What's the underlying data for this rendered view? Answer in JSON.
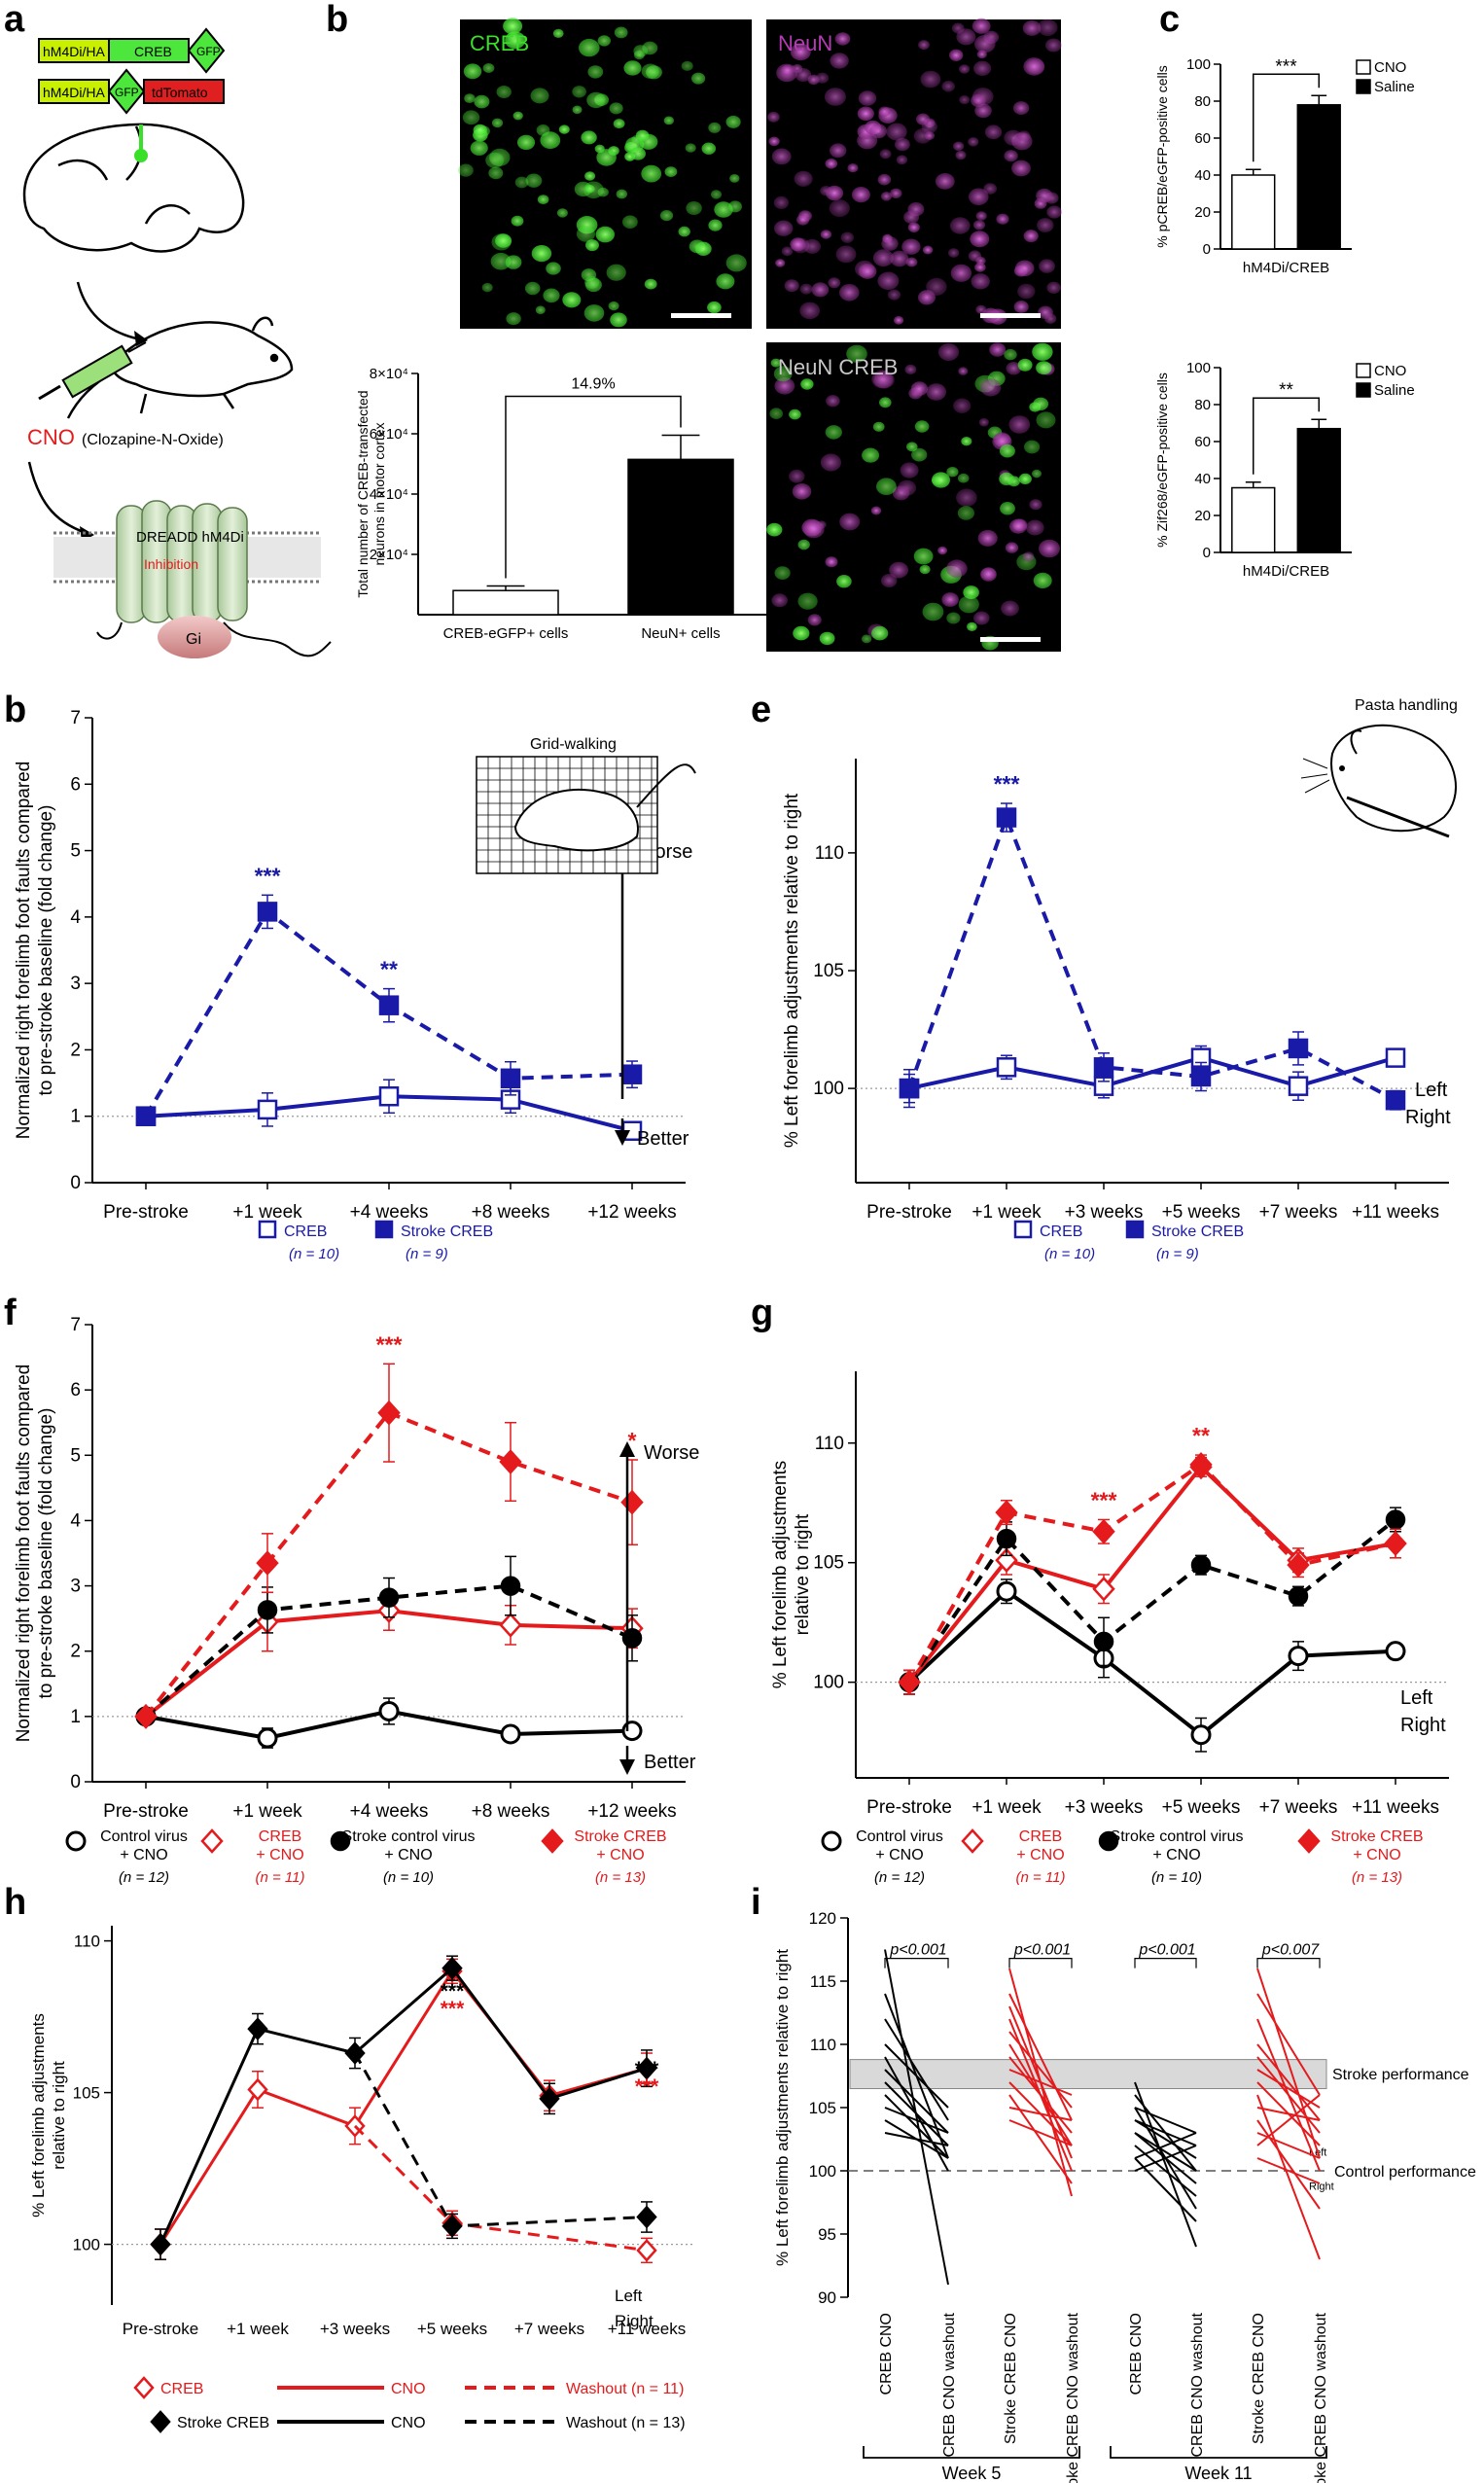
{
  "panel_letters": {
    "a": "a",
    "b_top": "b",
    "c": "c",
    "b": "b",
    "e": "e",
    "f": "f",
    "g": "g",
    "h": "h",
    "i": "i"
  },
  "colors": {
    "blue": "#1a1aa8",
    "red": "#e41a1c",
    "black": "#000000",
    "green": "#3adf2a",
    "magenta": "#b43bb4",
    "grey": "#d9d9d9"
  },
  "panel_a": {
    "constructs": [
      {
        "boxes": [
          "hM4Di/HA",
          "CREB",
          "GFP"
        ]
      },
      {
        "boxes": [
          "hM4Di/HA",
          "GFP",
          "tdTomato"
        ]
      }
    ],
    "cno_label": "CNO",
    "cno_full": "(Clozapine-N-Oxide)",
    "receptor_label": "DREADD hM4Di",
    "inhibition_label": "Inhibition",
    "gi_label": "Gi"
  },
  "panel_b_micro": {
    "images": [
      {
        "label": "CREB",
        "color": "#3adf2a"
      },
      {
        "label": "NeuN",
        "color": "#b43bb4"
      },
      {
        "label": "NeuN CREB",
        "color": "mixed"
      }
    ]
  },
  "chart_data": [
    {
      "id": "b_top_bar",
      "type": "bar",
      "categories": [
        "CREB-eGFP+ cells",
        "NeuN+ cells"
      ],
      "values": [
        8000,
        51500
      ],
      "errors": [
        1500,
        8000
      ],
      "ylabel": "Total number of CREB-transfected neurons in motor cortex",
      "yticks": [
        "2×10⁴",
        "4×10⁴",
        "6×10⁴",
        "8×10⁴"
      ],
      "ytick_values": [
        20000,
        40000,
        60000,
        80000
      ],
      "ylim": [
        0,
        80000
      ],
      "annotation": "14.9%"
    },
    {
      "id": "c_top_bar",
      "type": "bar",
      "categories": [
        "CNO",
        "Saline"
      ],
      "values": [
        40,
        78
      ],
      "errors": [
        3,
        5
      ],
      "ylabel": "% pCREB/eGFP-positive cells",
      "xlabel": "hM4Di/CREB",
      "yticks": [
        "0",
        "20",
        "40",
        "60",
        "80",
        "100"
      ],
      "ylim": [
        0,
        100
      ],
      "significance": "***",
      "legend": [
        "CNO",
        "Saline"
      ]
    },
    {
      "id": "c_bottom_bar",
      "type": "bar",
      "categories": [
        "CNO",
        "Saline"
      ],
      "values": [
        35,
        67
      ],
      "errors": [
        3,
        5
      ],
      "ylabel": "% Zif268/eGFP-positive cells",
      "xlabel": "hM4Di/CREB",
      "yticks": [
        "0",
        "20",
        "40",
        "60",
        "80",
        "100"
      ],
      "ylim": [
        0,
        100
      ],
      "significance": "**",
      "legend": [
        "CNO",
        "Saline"
      ]
    },
    {
      "id": "b_line",
      "type": "line",
      "categories": [
        "Pre-stroke",
        "+1 week",
        "+4 weeks",
        "+8 weeks",
        "+12 weeks"
      ],
      "ylabel": "Normalized right forelimb foot faults compared to pre-stroke baseline (fold change)",
      "yticks": [
        "0",
        "1",
        "2",
        "3",
        "4",
        "5",
        "6",
        "7"
      ],
      "ylim": [
        0,
        7
      ],
      "inset_title": "Grid-walking",
      "worse": "Worse",
      "better": "Better",
      "series": [
        {
          "name": "CREB",
          "n": "(n = 10)",
          "values": [
            1.0,
            1.1,
            1.3,
            1.25,
            0.78
          ],
          "errors": [
            0.05,
            0.25,
            0.25,
            0.2,
            0.1
          ],
          "color": "#1a1aa8",
          "dashed": false,
          "marker": "open-square"
        },
        {
          "name": "Stroke CREB",
          "n": "(n = 9)",
          "values": [
            1.0,
            4.08,
            2.67,
            1.57,
            1.63
          ],
          "errors": [
            0.05,
            0.25,
            0.25,
            0.25,
            0.2
          ],
          "color": "#1a1aa8",
          "dashed": true,
          "marker": "filled-square"
        }
      ],
      "stars": [
        {
          "cat": 1,
          "text": "***",
          "color": "#1a1aa8"
        },
        {
          "cat": 2,
          "text": "**",
          "color": "#1a1aa8"
        }
      ]
    },
    {
      "id": "e_line",
      "type": "line",
      "categories": [
        "Pre-stroke",
        "+1 week",
        "+3 weeks",
        "+5 weeks",
        "+7 weeks",
        "+11 weeks"
      ],
      "ylabel": "% Left forelimb adjustments relative to right",
      "yticks": [
        "100",
        "105",
        "110"
      ],
      "ylim": [
        96,
        114
      ],
      "inset_title": "Pasta handling",
      "left": "Left",
      "right": "Right",
      "series": [
        {
          "name": "CREB",
          "n": "(n = 10)",
          "values": [
            100,
            100.9,
            100.1,
            101.3,
            100.1,
            101.3
          ],
          "errors": [
            0.6,
            0.5,
            0.5,
            0.5,
            0.6,
            0.2
          ],
          "color": "#1a1aa8",
          "dashed": false,
          "marker": "open-square"
        },
        {
          "name": "Stroke CREB",
          "n": "(n = 9)",
          "values": [
            100,
            111.5,
            100.9,
            100.5,
            101.7,
            99.5
          ],
          "errors": [
            0.8,
            0.6,
            0.6,
            0.6,
            0.7,
            0.4
          ],
          "color": "#1a1aa8",
          "dashed": true,
          "marker": "filled-square"
        }
      ],
      "stars": [
        {
          "cat": 1,
          "text": "***",
          "color": "#1a1aa8"
        }
      ]
    },
    {
      "id": "f_line",
      "type": "line",
      "categories": [
        "Pre-stroke",
        "+1 week",
        "+4 weeks",
        "+8 weeks",
        "+12 weeks"
      ],
      "ylabel": "Normalized right forelimb foot faults compared to pre-stroke baseline (fold change)",
      "yticks": [
        "0",
        "1",
        "2",
        "3",
        "4",
        "5",
        "6",
        "7"
      ],
      "ylim": [
        0,
        7
      ],
      "worse": "Worse",
      "better": "Better",
      "series": [
        {
          "name": "Control virus + CNO",
          "n": "(n = 12)",
          "values": [
            1.0,
            0.67,
            1.08,
            0.73,
            0.78
          ],
          "errors": [
            0.05,
            0.15,
            0.2,
            0.1,
            0.08
          ],
          "color": "#000000",
          "dashed": false,
          "marker": "open-circle"
        },
        {
          "name": "CREB + CNO",
          "n": "(n = 11)",
          "values": [
            1.0,
            2.45,
            2.62,
            2.4,
            2.35
          ],
          "errors": [
            0.05,
            0.45,
            0.3,
            0.3,
            0.3
          ],
          "color": "#e41a1c",
          "dashed": false,
          "marker": "open-diamond"
        },
        {
          "name": "Stroke control virus + CNO",
          "n": "(n = 10)",
          "values": [
            1.0,
            2.63,
            2.82,
            3.0,
            2.2
          ],
          "errors": [
            0.05,
            0.35,
            0.3,
            0.45,
            0.35
          ],
          "color": "#000000",
          "dashed": true,
          "marker": "filled-circle"
        },
        {
          "name": "Stroke CREB + CNO",
          "n": "(n = 13)",
          "values": [
            1.0,
            3.35,
            5.65,
            4.9,
            4.28
          ],
          "errors": [
            0.05,
            0.45,
            0.75,
            0.6,
            0.65
          ],
          "color": "#e41a1c",
          "dashed": true,
          "marker": "filled-diamond"
        }
      ],
      "stars": [
        {
          "cat": 2,
          "text": "***",
          "color": "#e41a1c"
        },
        {
          "cat": 4,
          "text": "*",
          "color": "#e41a1c"
        }
      ]
    },
    {
      "id": "g_line",
      "type": "line",
      "categories": [
        "Pre-stroke",
        "+1 week",
        "+3 weeks",
        "+5 weeks",
        "+7 weeks",
        "+11 weeks"
      ],
      "ylabel": "% Left forelimb adjustments relative to right",
      "yticks": [
        "100",
        "105",
        "110"
      ],
      "ylim": [
        96,
        113
      ],
      "left": "Left",
      "right": "Right",
      "series": [
        {
          "name": "Control virus + CNO",
          "n": "(n = 12)",
          "values": [
            100,
            103.8,
            101,
            97.8,
            101.1,
            101.3
          ],
          "errors": [
            0.5,
            0.5,
            0.8,
            0.7,
            0.6,
            0.3
          ],
          "color": "#000000",
          "dashed": false,
          "marker": "open-circle"
        },
        {
          "name": "CREB + CNO",
          "n": "(n = 11)",
          "values": [
            100,
            105.1,
            103.9,
            109.0,
            105.1,
            105.8
          ],
          "errors": [
            0.5,
            0.6,
            0.6,
            0.4,
            0.5,
            0.6
          ],
          "color": "#e41a1c",
          "dashed": false,
          "marker": "open-diamond"
        },
        {
          "name": "Stroke control virus + CNO",
          "n": "(n = 10)",
          "values": [
            100,
            106.0,
            101.7,
            104.9,
            103.6,
            106.8
          ],
          "errors": [
            0.5,
            0.7,
            1.0,
            0.4,
            0.4,
            0.5
          ],
          "color": "#000000",
          "dashed": true,
          "marker": "filled-circle"
        },
        {
          "name": "Stroke CREB + CNO",
          "n": "(n = 13)",
          "values": [
            100,
            107.1,
            106.3,
            109.1,
            104.9,
            105.8
          ],
          "errors": [
            0.5,
            0.5,
            0.5,
            0.4,
            0.5,
            0.6
          ],
          "color": "#e41a1c",
          "dashed": true,
          "marker": "filled-diamond"
        }
      ],
      "stars": [
        {
          "cat": 2,
          "text": "***",
          "color": "#e41a1c"
        },
        {
          "cat": 3,
          "text": "**",
          "color": "#e41a1c"
        }
      ]
    },
    {
      "id": "h_line",
      "type": "line",
      "categories": [
        "Pre-stroke",
        "+1 week",
        "+3 weeks",
        "+5 weeks",
        "+7 weeks",
        "+11 weeks"
      ],
      "ylabel": "% Left forelimb adjustments relative to right",
      "yticks": [
        "100",
        "105",
        "110"
      ],
      "ylim": [
        98,
        110.5
      ],
      "left": "Left",
      "right": "Right",
      "series": [
        {
          "name": "CREB CNO",
          "values": [
            100,
            105.1,
            103.9,
            109.0,
            104.9,
            105.8
          ],
          "errors": [
            0.5,
            0.6,
            0.6,
            0.4,
            0.5,
            0.5
          ],
          "color": "#e41a1c",
          "dashed": false,
          "marker": "open-diamond",
          "from": 0
        },
        {
          "name": "Stroke CREB CNO",
          "values": [
            100,
            107.1,
            106.3,
            109.1,
            104.8,
            105.8
          ],
          "errors": [
            0.5,
            0.5,
            0.5,
            0.4,
            0.5,
            0.6
          ],
          "color": "#000000",
          "dashed": false,
          "marker": "filled-diamond",
          "from": 0
        },
        {
          "name": "CREB Washout",
          "n": "(n = 11)",
          "values": [
            null,
            null,
            103.9,
            100.7,
            null,
            99.8
          ],
          "errors": [
            0,
            0,
            0,
            0.4,
            0,
            0.4
          ],
          "color": "#e41a1c",
          "dashed": true,
          "marker": "open-diamond",
          "from": 2
        },
        {
          "name": "Stroke CREB Washout",
          "n": "(n = 13)",
          "values": [
            null,
            null,
            106.3,
            100.6,
            null,
            100.9
          ],
          "errors": [
            0,
            0,
            0,
            0.4,
            0,
            0.5
          ],
          "color": "#000000",
          "dashed": true,
          "marker": "filled-diamond",
          "from": 2
        }
      ],
      "stars": [
        {
          "cat": 3,
          "text": "***",
          "color": "#000000",
          "row": 0
        },
        {
          "cat": 3,
          "text": "***",
          "color": "#e41a1c",
          "row": 1
        },
        {
          "cat": 5,
          "text": "***",
          "color": "#000000",
          "row": 0
        },
        {
          "cat": 5,
          "text": "***",
          "color": "#e41a1c",
          "row": 1
        }
      ],
      "legend": {
        "creb": "CREB",
        "stroke_creb": "Stroke CREB",
        "cno": "CNO",
        "washout_red": "Washout (n = 11)",
        "washout_black": "Washout (n = 13)"
      }
    },
    {
      "id": "i_paired",
      "type": "line",
      "categories": [
        "CREB CNO",
        "CREB CNO washout",
        "Stroke CREB CNO",
        "Stroke CREB CNO washout",
        "CREB CNO",
        "CREB CNO washout",
        "Stroke CREB CNO",
        "Stroke CREB CNO washout"
      ],
      "ylabel": "% Left forelimb adjustments relative to right",
      "yticks": [
        "90",
        "95",
        "100",
        "105",
        "110",
        "115",
        "120"
      ],
      "ylim": [
        90,
        120
      ],
      "pvalues": [
        "p<0.001",
        "p<0.001",
        "p<0.001",
        "p<0.007"
      ],
      "weeks": [
        "Week 5",
        "Week 11"
      ],
      "stroke_performance": "Stroke performance",
      "control_performance": "Control performance",
      "left": "Left",
      "right": "Right",
      "band": [
        106.5,
        108.8
      ],
      "pairs": [
        {
          "color": "#000000",
          "pairs": [
            [
              117.5,
              91
            ],
            [
              114,
              101
            ],
            [
              112,
              104
            ],
            [
              110,
              105
            ],
            [
              109,
              100
            ],
            [
              108,
              103
            ],
            [
              107,
              102
            ],
            [
              106,
              101
            ],
            [
              105,
              103
            ],
            [
              104,
              101
            ],
            [
              103,
              102
            ]
          ]
        },
        {
          "color": "#e41a1c",
          "pairs": [
            [
              116,
              98
            ],
            [
              114,
              104
            ],
            [
              113,
              101
            ],
            [
              112,
              100
            ],
            [
              111,
              105
            ],
            [
              110,
              102
            ],
            [
              109,
              103
            ],
            [
              108,
              106
            ],
            [
              107,
              102
            ],
            [
              106,
              99
            ],
            [
              105,
              104
            ],
            [
              104,
              102
            ]
          ]
        },
        {
          "color": "#000000",
          "pairs": [
            [
              107,
              94
            ],
            [
              106,
              100
            ],
            [
              105,
              103
            ],
            [
              105,
              97
            ],
            [
              104,
              101
            ],
            [
              104,
              102
            ],
            [
              103,
              99
            ],
            [
              103,
              100
            ],
            [
              102,
              98
            ],
            [
              101,
              96
            ],
            [
              101,
              103
            ],
            [
              100,
              102
            ]
          ]
        },
        {
          "color": "#e41a1c",
          "pairs": [
            [
              116,
              101
            ],
            [
              114,
              106
            ],
            [
              112,
              100
            ],
            [
              110,
              104
            ],
            [
              109,
              103
            ],
            [
              108,
              105
            ],
            [
              107,
              102
            ],
            [
              106,
              93
            ],
            [
              105,
              104
            ],
            [
              104,
              97
            ],
            [
              103,
              101
            ],
            [
              102,
              106
            ],
            [
              101,
              99
            ]
          ]
        }
      ]
    }
  ]
}
